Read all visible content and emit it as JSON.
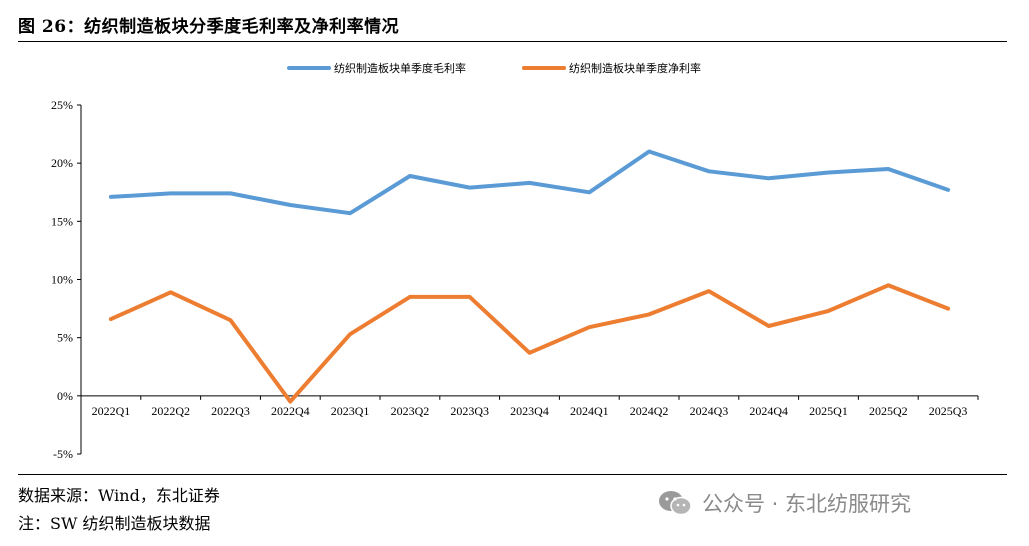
{
  "figure": {
    "title": "图 26：纺织制造板块分季度毛利率及净利率情况",
    "source": "数据来源：Wind，东北证券",
    "note": "注：SW 纺织制造板块数据",
    "watermark": "公众号 · 东北纺服研究",
    "watermark_icon": "wechat-icon"
  },
  "chart_data": {
    "type": "line",
    "title": "",
    "xlabel": "",
    "ylabel": "",
    "categories": [
      "2022Q1",
      "2022Q2",
      "2022Q3",
      "2022Q4",
      "2023Q1",
      "2023Q2",
      "2023Q3",
      "2023Q4",
      "2024Q1",
      "2024Q2",
      "2024Q3",
      "2024Q4",
      "2025Q1",
      "2025Q2",
      "2025Q3"
    ],
    "series": [
      {
        "name": "纺织制造板块单季度毛利率",
        "color": "#5B9BD5",
        "values": [
          17.1,
          17.4,
          17.4,
          16.4,
          15.7,
          18.9,
          17.9,
          18.3,
          17.5,
          21.0,
          19.3,
          18.7,
          19.2,
          19.5,
          17.7
        ]
      },
      {
        "name": "纺织制造板块单季度净利率",
        "color": "#ED7D31",
        "values": [
          6.6,
          8.9,
          6.5,
          -0.5,
          5.3,
          8.5,
          8.5,
          3.7,
          5.9,
          7.0,
          9.0,
          6.0,
          7.3,
          9.5,
          7.5
        ]
      }
    ],
    "ylim": [
      -5,
      25
    ],
    "yticks": [
      -5,
      0,
      5,
      10,
      15,
      20,
      25
    ],
    "ytick_labels": [
      "-5%",
      "0%",
      "5%",
      "10%",
      "15%",
      "20%",
      "25%"
    ],
    "grid": false,
    "legend_position": "top-center"
  }
}
